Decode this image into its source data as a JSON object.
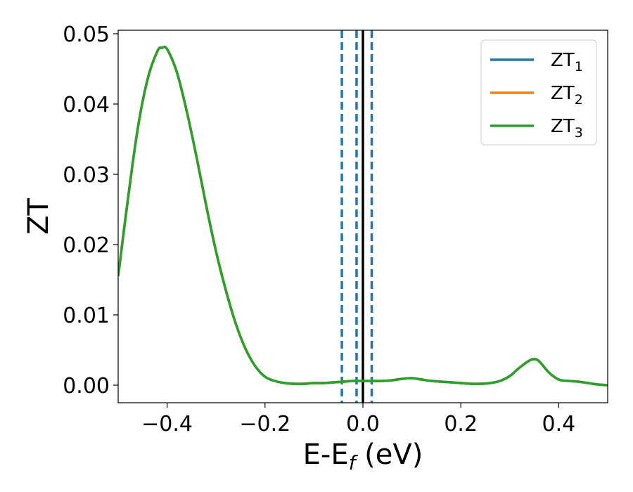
{
  "chart_data": {
    "type": "line",
    "xlabel": "E-E",
    "xlabel_sub": "f",
    "xlabel_unit": " (eV)",
    "ylabel": "ZT",
    "xlim": [
      -0.5,
      0.5
    ],
    "ylim": [
      -0.0025,
      0.0505
    ],
    "xticks": [
      -0.4,
      -0.2,
      0.0,
      0.2,
      0.4
    ],
    "xtick_labels": [
      "−0.4",
      "−0.2",
      "0.0",
      "0.2",
      "0.4"
    ],
    "yticks": [
      0.0,
      0.01,
      0.02,
      0.03,
      0.04,
      0.05
    ],
    "ytick_labels": [
      "0.00",
      "0.01",
      "0.02",
      "0.03",
      "0.04",
      "0.05"
    ],
    "grid": false,
    "legend_position": "top-right",
    "x": [
      -0.5,
      -0.48,
      -0.46,
      -0.44,
      -0.42,
      -0.41,
      -0.4,
      -0.38,
      -0.36,
      -0.34,
      -0.32,
      -0.3,
      -0.28,
      -0.26,
      -0.24,
      -0.22,
      -0.2,
      -0.18,
      -0.16,
      -0.14,
      -0.12,
      -0.1,
      -0.08,
      -0.06,
      -0.04,
      -0.02,
      0.0,
      0.02,
      0.04,
      0.06,
      0.08,
      0.1,
      0.12,
      0.14,
      0.16,
      0.18,
      0.2,
      0.22,
      0.24,
      0.26,
      0.28,
      0.3,
      0.32,
      0.34,
      0.35,
      0.36,
      0.38,
      0.4,
      0.42,
      0.44,
      0.46,
      0.48,
      0.5
    ],
    "series": [
      {
        "name": "ZT",
        "name_sub": "1",
        "color": "#1f77b4",
        "values": [
          0.0155,
          0.0265,
          0.0365,
          0.0435,
          0.0475,
          0.048,
          0.0478,
          0.0445,
          0.039,
          0.0325,
          0.0255,
          0.019,
          0.0135,
          0.0088,
          0.0052,
          0.0027,
          0.0012,
          0.0006,
          0.0003,
          0.0002,
          0.0002,
          0.0003,
          0.0003,
          0.0004,
          0.0005,
          0.0006,
          0.0006,
          0.0006,
          0.0006,
          0.0007,
          0.0009,
          0.001,
          0.0008,
          0.0006,
          0.0005,
          0.0004,
          0.0003,
          0.0002,
          0.0002,
          0.0003,
          0.0006,
          0.0013,
          0.0025,
          0.0035,
          0.0037,
          0.0034,
          0.0018,
          0.0008,
          0.0006,
          0.0005,
          0.0003,
          0.0001,
          0.0
        ]
      },
      {
        "name": "ZT",
        "name_sub": "2",
        "color": "#ff7f0e",
        "values": [
          0.0155,
          0.0265,
          0.0365,
          0.0435,
          0.0475,
          0.048,
          0.0478,
          0.0445,
          0.039,
          0.0325,
          0.0255,
          0.019,
          0.0135,
          0.0088,
          0.0052,
          0.0027,
          0.0012,
          0.0006,
          0.0003,
          0.0002,
          0.0002,
          0.0003,
          0.0003,
          0.0004,
          0.0005,
          0.0006,
          0.0006,
          0.0006,
          0.0006,
          0.0007,
          0.0009,
          0.001,
          0.0008,
          0.0006,
          0.0005,
          0.0004,
          0.0003,
          0.0002,
          0.0002,
          0.0003,
          0.0006,
          0.0013,
          0.0025,
          0.0035,
          0.0037,
          0.0034,
          0.0018,
          0.0008,
          0.0006,
          0.0005,
          0.0003,
          0.0001,
          0.0
        ]
      },
      {
        "name": "ZT",
        "name_sub": "3",
        "color": "#2ca02c",
        "values": [
          0.0155,
          0.0265,
          0.0365,
          0.0435,
          0.0475,
          0.048,
          0.0478,
          0.0445,
          0.039,
          0.0325,
          0.0255,
          0.019,
          0.0135,
          0.0088,
          0.0052,
          0.0027,
          0.0012,
          0.0006,
          0.0003,
          0.0002,
          0.0002,
          0.0003,
          0.0003,
          0.0004,
          0.0005,
          0.0006,
          0.0006,
          0.0006,
          0.0006,
          0.0007,
          0.0009,
          0.001,
          0.0008,
          0.0006,
          0.0005,
          0.0004,
          0.0003,
          0.0002,
          0.0002,
          0.0003,
          0.0006,
          0.0013,
          0.0025,
          0.0035,
          0.0037,
          0.0034,
          0.0018,
          0.0008,
          0.0006,
          0.0005,
          0.0003,
          0.0001,
          0.0
        ]
      }
    ],
    "vlines": [
      {
        "x": -0.043,
        "style": "dashed",
        "color": "#1f77b4"
      },
      {
        "x": -0.013,
        "style": "dashed",
        "color": "#1f77b4"
      },
      {
        "x": 0.018,
        "style": "dashed",
        "color": "#1f77b4"
      },
      {
        "x": 0.0,
        "style": "solid",
        "color": "#000000"
      }
    ]
  }
}
